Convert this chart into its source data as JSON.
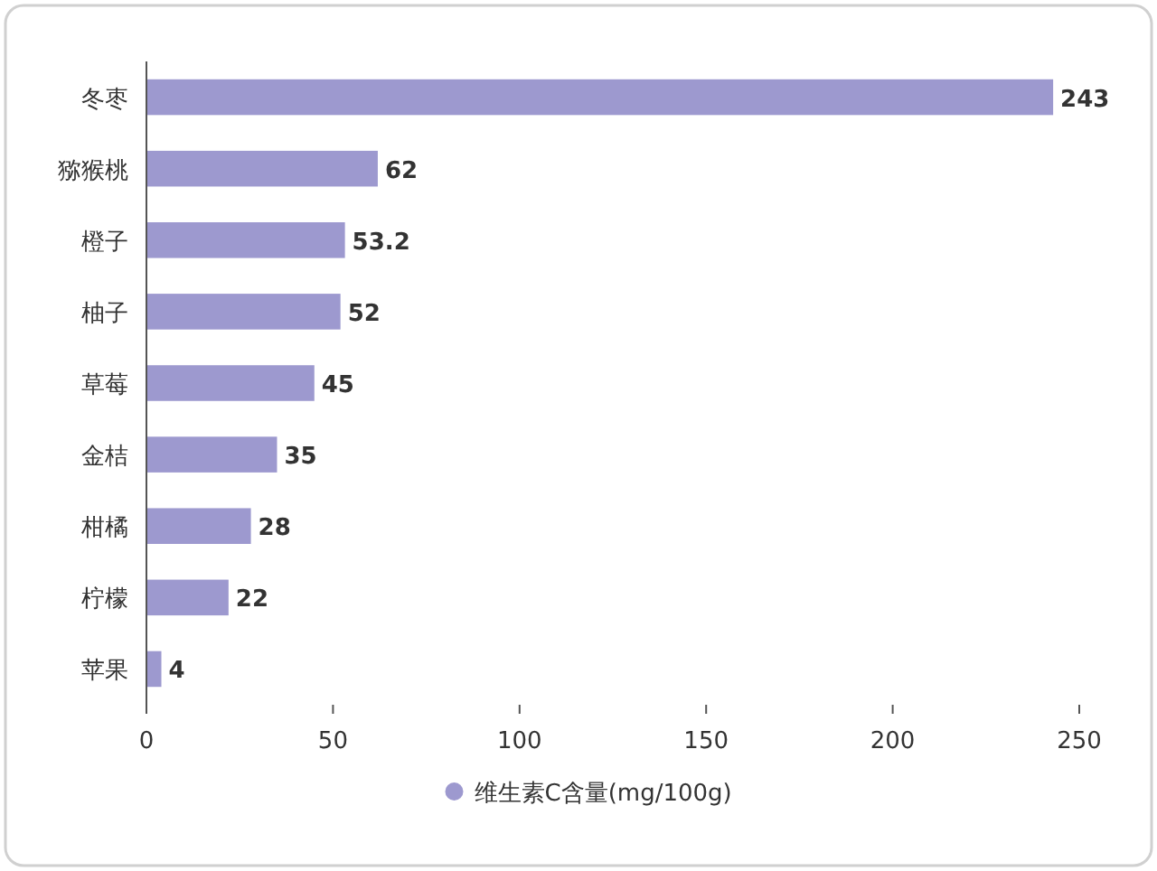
{
  "chart_data": {
    "type": "bar",
    "orientation": "horizontal",
    "categories": [
      "冬枣",
      "猕猴桃",
      "橙子",
      "柚子",
      "草莓",
      "金桔",
      "柑橘",
      "柠檬",
      "苹果"
    ],
    "series": [
      {
        "name": "维生素C含量(mg/100g)",
        "color": "#9d99cf",
        "values": [
          243,
          62,
          53.2,
          52,
          45,
          35,
          28,
          22,
          4
        ]
      }
    ],
    "xlim": [
      0,
      250
    ],
    "xticks": [
      0,
      50,
      100,
      150,
      200,
      250
    ],
    "data_labels": true,
    "legend": "bottom"
  }
}
